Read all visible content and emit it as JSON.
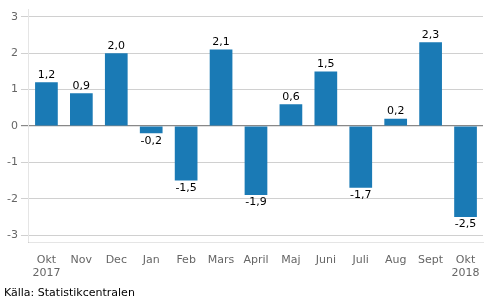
{
  "chart_data": {
    "type": "bar",
    "categories": [
      "Okt\n2017",
      "Nov",
      "Dec",
      "Jan",
      "Feb",
      "Mars",
      "April",
      "Maj",
      "Juni",
      "Juli",
      "Aug",
      "Sept",
      "Okt\n2018"
    ],
    "values": [
      1.2,
      0.9,
      2.0,
      -0.2,
      -1.5,
      2.1,
      -1.9,
      0.6,
      1.5,
      -1.7,
      0.2,
      2.3,
      -2.5
    ],
    "value_labels": [
      "1,2",
      "0,9",
      "2,0",
      "-0,2",
      "-1,5",
      "2,1",
      "-1,9",
      "0,6",
      "1,5",
      "-1,7",
      "0,2",
      "2,3",
      "-2,5"
    ],
    "data_labels": true,
    "color": "#1a7ab5",
    "ylim": [
      -3.2,
      3.2
    ],
    "yticks": [
      -3,
      -2,
      -1,
      0,
      1,
      2,
      3
    ],
    "grid": true,
    "annotations": [
      "Källa: Statistikcentralen"
    ]
  }
}
